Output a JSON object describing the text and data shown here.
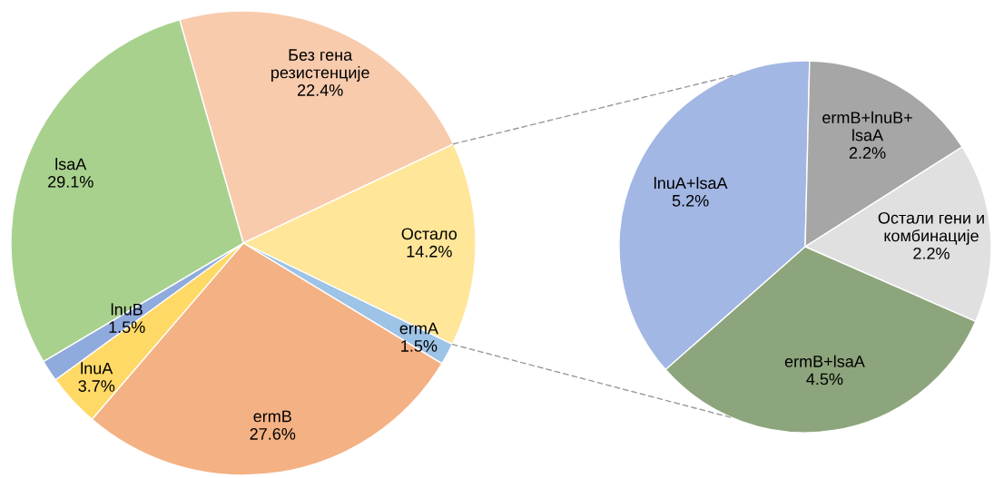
{
  "chart_data": [
    {
      "type": "pie",
      "categories": [
        "Без гена\nрезистенције",
        "Остало",
        "ermA",
        "ermB",
        "lnuA",
        "lnuB",
        "lsaA"
      ],
      "values": [
        22.4,
        14.2,
        1.5,
        27.6,
        3.7,
        1.5,
        29.1
      ],
      "value_labels": [
        "22.4%",
        "14.2%",
        "1.5%",
        "27.6%",
        "3.7%",
        "1.5%",
        "29.1%"
      ],
      "colors": [
        "#f8cbad",
        "#ffe699",
        "#9dc3e6",
        "#f4b183",
        "#ffd966",
        "#8faadc",
        "#a9d18e"
      ]
    },
    {
      "type": "pie",
      "categories": [
        "lnuA+lsaA",
        "ermB+lnuB+\nlsaA",
        "Остали гени и\nкомбинације",
        "ermB+lsaA"
      ],
      "values": [
        5.2,
        2.2,
        2.2,
        4.5
      ],
      "value_labels": [
        "5.2%",
        "2.2%",
        "2.2%",
        "4.5%"
      ],
      "colors": [
        "#a3b7e4",
        "#a6a6a6",
        "#e0e0e0",
        "#8da57c"
      ]
    }
  ]
}
